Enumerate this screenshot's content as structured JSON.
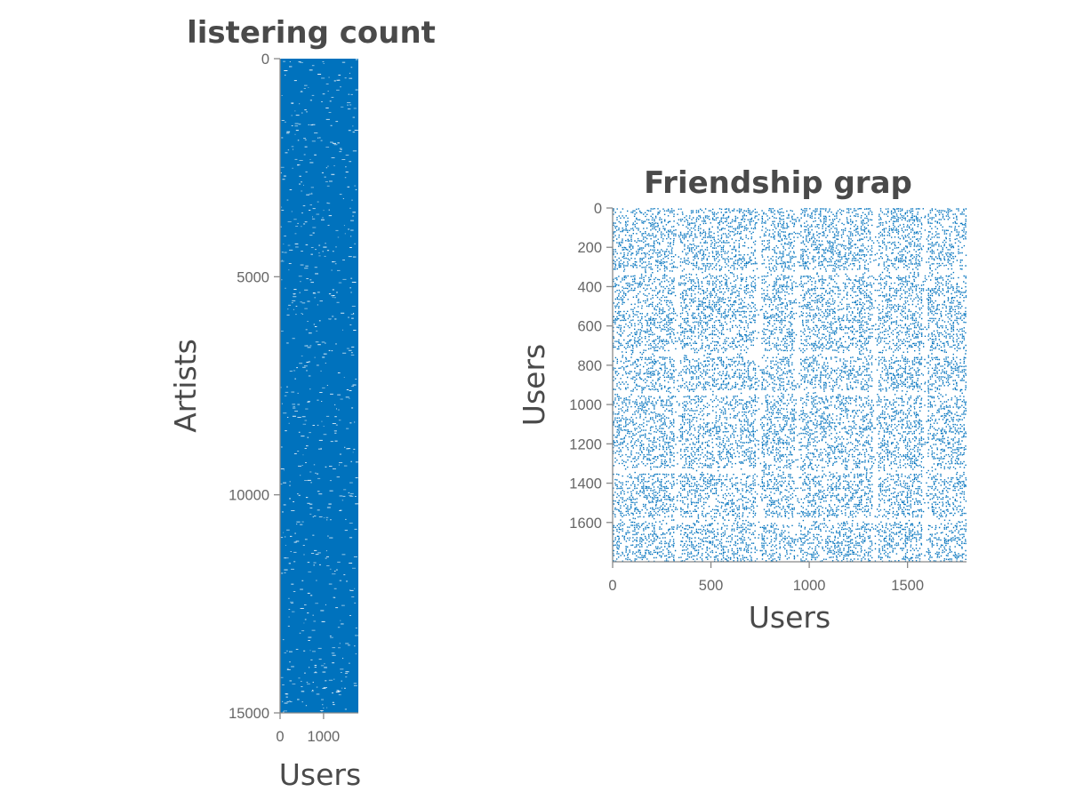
{
  "chart_data": [
    {
      "type": "scatter",
      "subtype": "sparsity-pattern",
      "title": "listering count",
      "xlabel": "Users",
      "ylabel": "Artists",
      "xlim": [
        0,
        1800
      ],
      "ylim": [
        0,
        15000
      ],
      "y_reversed": true,
      "xticks": [
        0,
        1000
      ],
      "yticks": [
        0,
        5000,
        10000,
        15000
      ],
      "xtick_labels": [
        "0",
        "1000"
      ],
      "ytick_labels": [
        "0",
        "5000",
        "10000",
        "15000"
      ],
      "color": "#0072BD",
      "density": "dense"
    },
    {
      "type": "scatter",
      "subtype": "sparsity-pattern",
      "title": "Friendship grap",
      "xlabel": "Users",
      "ylabel": "Users",
      "xlim": [
        0,
        1800
      ],
      "ylim": [
        0,
        1800
      ],
      "y_reversed": true,
      "xticks": [
        0,
        500,
        1000,
        1500
      ],
      "yticks": [
        0,
        200,
        400,
        600,
        800,
        1000,
        1200,
        1400,
        1600
      ],
      "xtick_labels": [
        "0",
        "500",
        "1000",
        "1500"
      ],
      "ytick_labels": [
        "0",
        "200",
        "400",
        "600",
        "800",
        "1000",
        "1200",
        "1400",
        "1600"
      ],
      "color": "#0072BD",
      "density": "sparse"
    }
  ]
}
